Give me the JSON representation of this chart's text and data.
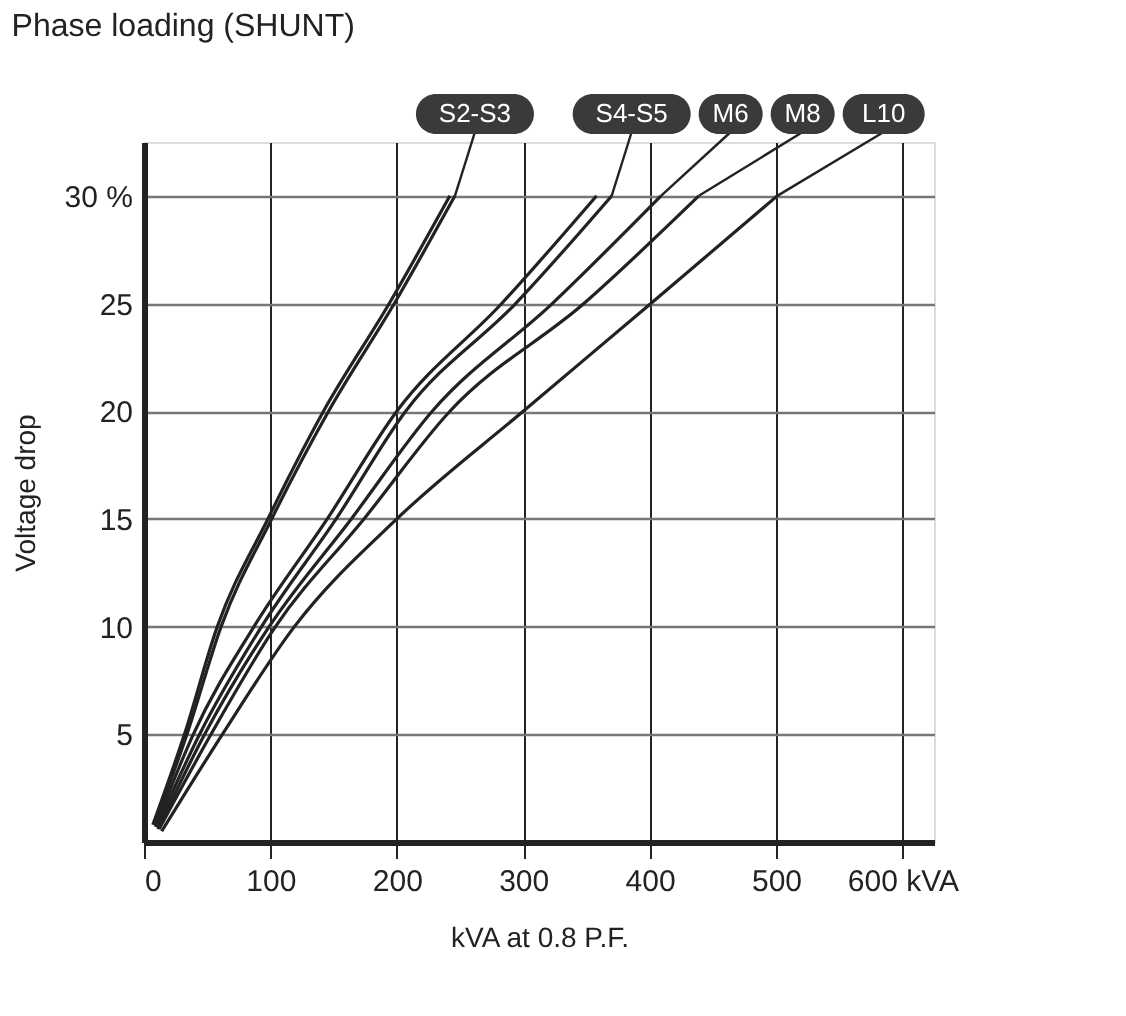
{
  "chart_data": {
    "type": "line",
    "title": "Phase loading (SHUNT)",
    "xlabel": "kVA at 0.8 P.F.",
    "ylabel": "Voltage drop",
    "xlim": [
      0,
      625
    ],
    "ylim": [
      0,
      32.5
    ],
    "xticks": [
      0,
      100,
      200,
      300,
      400,
      500,
      {
        "value": 600,
        "label": "600 kVA"
      }
    ],
    "yticks": [
      5,
      10,
      15,
      20,
      25,
      {
        "value": 30,
        "label": "30 %"
      }
    ],
    "grid": true,
    "marker": "none",
    "line_style": "solid",
    "series": [
      {
        "color": "#222222",
        "x": [
          7,
          32,
          58,
          98,
          142,
          194,
          242
        ],
        "values": [
          0.8,
          5,
          10,
          15,
          20,
          25,
          30
        ]
      },
      {
        "name": "S2-S3",
        "color": "#222222",
        "x": [
          8,
          34,
          61,
          101,
          146,
          198,
          246
        ],
        "values": [
          0.8,
          5,
          10,
          15,
          20,
          25,
          30
        ]
      },
      {
        "color": "#222222",
        "x": [
          9,
          39,
          87,
          145,
          200,
          283,
          358
        ],
        "values": [
          0.7,
          5,
          10,
          15,
          20,
          25,
          30
        ]
      },
      {
        "name": "S4-S5",
        "color": "#222222",
        "x": [
          10,
          44,
          93,
          152,
          207,
          294,
          370
        ],
        "values": [
          0.7,
          5,
          10,
          15,
          20,
          25,
          30
        ]
      },
      {
        "name": "M6",
        "color": "#222222",
        "x": [
          11,
          48,
          99,
          164,
          228,
          323,
          409
        ],
        "values": [
          0.6,
          5,
          10,
          15,
          20,
          25,
          30
        ]
      },
      {
        "name": "M8",
        "color": "#222222",
        "x": [
          12,
          53,
          104,
          174,
          242,
          348,
          439
        ],
        "values": [
          0.6,
          5,
          10,
          15,
          20,
          25,
          30
        ]
      },
      {
        "name": "L10",
        "color": "#222222",
        "x": [
          14,
          62,
          119,
          200,
          300,
          401,
          501
        ],
        "values": [
          0.5,
          5,
          10,
          15,
          20,
          25,
          30
        ]
      }
    ]
  }
}
